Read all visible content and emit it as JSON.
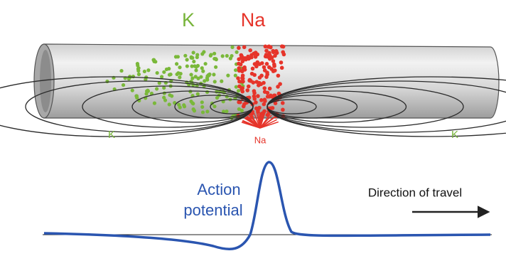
{
  "labels": {
    "k_top": "K",
    "na_top": "Na",
    "k_left": "K",
    "k_right": "K",
    "na_bottom": "Na",
    "action": "Action",
    "potential": "potential",
    "direction": "Direction of travel"
  }
}
